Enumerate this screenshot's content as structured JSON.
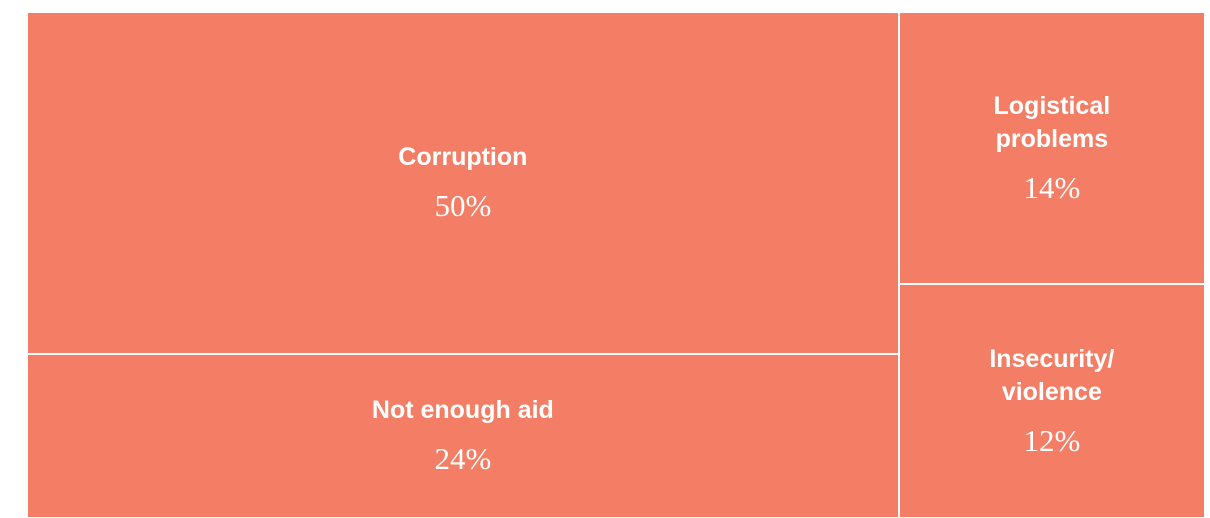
{
  "chart_data": {
    "type": "treemap",
    "categories": [
      "Corruption",
      "Not enough aid",
      "Logistical problems",
      "Insecurity/ violence"
    ],
    "values": [
      50,
      24,
      14,
      12
    ],
    "value_labels": [
      "50%",
      "24%",
      "14%",
      "12%"
    ],
    "color": "#f37e65"
  }
}
